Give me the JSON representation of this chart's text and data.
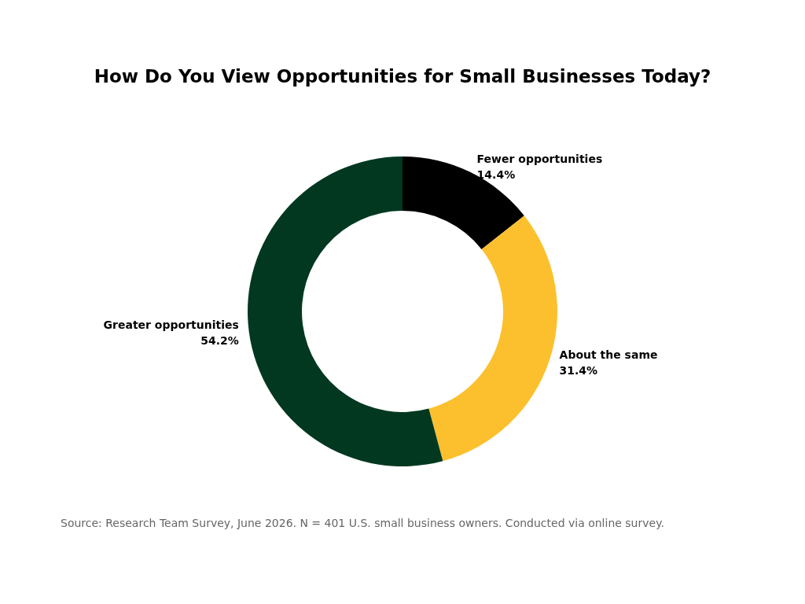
{
  "chart_data": {
    "type": "donut",
    "title": "How Do You View Opportunities for Small Businesses Today?",
    "categories": [
      "Fewer opportunities",
      "About the same",
      "Greater opportunities"
    ],
    "values": [
      14.4,
      31.4,
      54.2
    ],
    "colors": [
      "#000000",
      "#fcc02e",
      "#023820"
    ],
    "value_labels": [
      "14.4%",
      "31.4%",
      "54.2%"
    ],
    "annotations": [
      "Source: Research Team Survey, June 2026. N = 401 U.S. small business owners. Conducted via online survey."
    ]
  }
}
